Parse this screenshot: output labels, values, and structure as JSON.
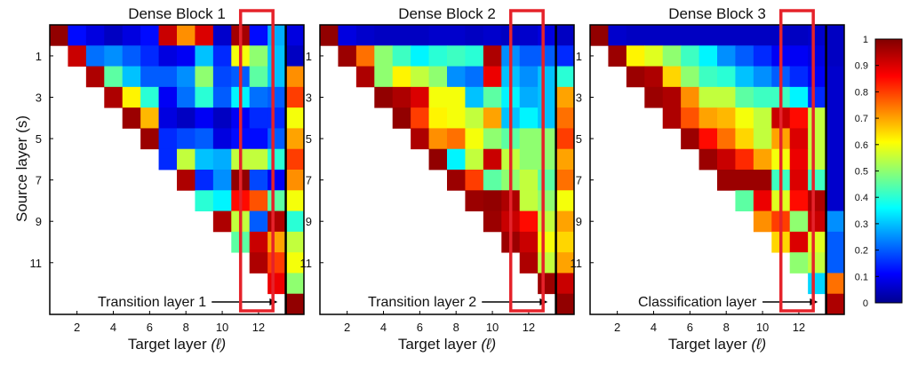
{
  "chart_data": {
    "type": "heatmap",
    "ylabel": "Source layer (s)",
    "y_tick_labels": [
      "1",
      "3",
      "5",
      "7",
      "9",
      "11"
    ],
    "x_tick_labels": [
      "2",
      "4",
      "6",
      "8",
      "10",
      "12"
    ],
    "xlabel_text": "Target layer",
    "xlabel_symbol": "(ℓ)",
    "colorbar": {
      "ticks": [
        "1",
        "0.9",
        "0.8",
        "0.7",
        "0.6",
        "0.5",
        "0.4",
        "0.3",
        "0.2",
        "0.1",
        "0"
      ],
      "range": [
        0,
        1
      ],
      "colormap": "jet"
    },
    "panels": [
      {
        "title": "Dense Block 1",
        "annotation": "Transition layer 1",
        "matrix": [
          [
            0.98,
            0.12,
            0.08,
            0.05,
            0.08,
            0.12,
            0.92,
            0.72,
            0.9,
            0.06,
            0.96,
            0.12,
            0.28,
            0.08
          ],
          [
            null,
            0.92,
            0.22,
            0.25,
            0.2,
            0.15,
            0.08,
            0.1,
            0.3,
            0.15,
            0.6,
            0.5,
            0.3,
            0.05
          ],
          [
            null,
            null,
            0.95,
            0.45,
            0.3,
            0.2,
            0.2,
            0.25,
            0.5,
            0.18,
            0.2,
            0.45,
            0.3,
            0.72
          ],
          [
            null,
            null,
            null,
            0.95,
            0.62,
            0.4,
            0.1,
            0.22,
            0.4,
            0.2,
            0.35,
            0.22,
            0.2,
            0.8
          ],
          [
            null,
            null,
            null,
            null,
            0.97,
            0.68,
            0.08,
            0.05,
            0.1,
            0.05,
            0.1,
            0.15,
            0.15,
            0.6
          ],
          [
            null,
            null,
            null,
            null,
            null,
            0.97,
            0.15,
            0.18,
            0.2,
            0.08,
            0.12,
            0.12,
            0.2,
            0.7
          ],
          [
            null,
            null,
            null,
            null,
            null,
            null,
            0.15,
            0.55,
            0.3,
            0.28,
            0.55,
            0.55,
            0.4,
            0.8
          ],
          [
            null,
            null,
            null,
            null,
            null,
            null,
            null,
            0.95,
            0.15,
            0.25,
            0.98,
            0.18,
            0.1,
            0.72
          ],
          [
            null,
            null,
            null,
            null,
            null,
            null,
            null,
            null,
            0.4,
            0.35,
            0.85,
            0.78,
            0.45,
            0.6
          ],
          [
            null,
            null,
            null,
            null,
            null,
            null,
            null,
            null,
            null,
            0.95,
            0.55,
            0.2,
            0.95,
            0.4
          ],
          [
            null,
            null,
            null,
            null,
            null,
            null,
            null,
            null,
            null,
            null,
            0.45,
            0.92,
            0.7,
            0.55
          ],
          [
            null,
            null,
            null,
            null,
            null,
            null,
            null,
            null,
            null,
            null,
            null,
            0.95,
            0.8,
            0.6
          ],
          [
            null,
            null,
            null,
            null,
            null,
            null,
            null,
            null,
            null,
            null,
            null,
            null,
            0.88,
            0.5
          ],
          [
            null,
            null,
            null,
            null,
            null,
            null,
            null,
            null,
            null,
            null,
            null,
            null,
            null,
            0.98
          ]
        ]
      },
      {
        "title": "Dense Block 2",
        "annotation": "Transition layer 2",
        "matrix": [
          [
            0.98,
            0.08,
            0.06,
            0.05,
            0.05,
            0.05,
            0.06,
            0.06,
            0.05,
            0.06,
            0.05,
            0.06,
            0.08,
            0.05
          ],
          [
            null,
            0.97,
            0.75,
            0.5,
            0.42,
            0.35,
            0.4,
            0.42,
            0.4,
            0.95,
            0.25,
            0.2,
            0.2,
            0.15
          ],
          [
            null,
            null,
            0.95,
            0.5,
            0.62,
            0.55,
            0.5,
            0.25,
            0.22,
            0.88,
            0.3,
            0.25,
            0.3,
            0.4
          ],
          [
            null,
            null,
            null,
            0.98,
            0.95,
            0.9,
            0.6,
            0.6,
            0.3,
            0.45,
            0.35,
            0.28,
            0.3,
            0.7
          ],
          [
            null,
            null,
            null,
            null,
            0.98,
            0.8,
            0.62,
            0.6,
            0.55,
            0.7,
            0.3,
            0.35,
            0.3,
            0.75
          ],
          [
            null,
            null,
            null,
            null,
            null,
            0.95,
            0.72,
            0.75,
            0.6,
            0.5,
            0.45,
            0.5,
            0.5,
            0.8
          ],
          [
            null,
            null,
            null,
            null,
            null,
            null,
            0.98,
            0.35,
            0.55,
            0.92,
            0.55,
            0.5,
            0.5,
            0.7
          ],
          [
            null,
            null,
            null,
            null,
            null,
            null,
            null,
            0.97,
            0.8,
            0.45,
            0.5,
            0.55,
            0.45,
            0.75
          ],
          [
            null,
            null,
            null,
            null,
            null,
            null,
            null,
            null,
            0.97,
            0.98,
            0.95,
            0.55,
            0.5,
            0.6
          ],
          [
            null,
            null,
            null,
            null,
            null,
            null,
            null,
            null,
            null,
            0.97,
            0.92,
            0.85,
            0.55,
            0.7
          ],
          [
            null,
            null,
            null,
            null,
            null,
            null,
            null,
            null,
            null,
            null,
            0.97,
            0.92,
            0.6,
            0.65
          ],
          [
            null,
            null,
            null,
            null,
            null,
            null,
            null,
            null,
            null,
            null,
            null,
            0.95,
            0.55,
            0.7
          ],
          [
            null,
            null,
            null,
            null,
            null,
            null,
            null,
            null,
            null,
            null,
            null,
            null,
            0.97,
            0.92
          ],
          [
            null,
            null,
            null,
            null,
            null,
            null,
            null,
            null,
            null,
            null,
            null,
            null,
            null,
            0.98
          ]
        ]
      },
      {
        "title": "Dense Block 3",
        "annotation": "Classification layer",
        "matrix": [
          [
            0.98,
            0.06,
            0.05,
            0.05,
            0.05,
            0.05,
            0.05,
            0.05,
            0.05,
            0.05,
            0.05,
            0.05,
            0.06,
            0.05
          ],
          [
            null,
            0.97,
            0.62,
            0.58,
            0.5,
            0.42,
            0.35,
            0.25,
            0.2,
            0.15,
            0.1,
            0.1,
            0.08,
            0.05
          ],
          [
            null,
            null,
            0.97,
            0.95,
            0.65,
            0.5,
            0.42,
            0.4,
            0.3,
            0.25,
            0.2,
            0.15,
            0.1,
            0.06
          ],
          [
            null,
            null,
            null,
            0.97,
            0.95,
            0.72,
            0.55,
            0.55,
            0.45,
            0.42,
            0.42,
            0.35,
            0.15,
            0.06
          ],
          [
            null,
            null,
            null,
            null,
            0.95,
            0.78,
            0.7,
            0.68,
            0.6,
            0.55,
            0.92,
            0.85,
            0.55,
            0.06
          ],
          [
            null,
            null,
            null,
            null,
            null,
            0.97,
            0.85,
            0.75,
            0.65,
            0.55,
            0.7,
            0.9,
            0.55,
            0.06
          ],
          [
            null,
            null,
            null,
            null,
            null,
            null,
            0.97,
            0.92,
            0.82,
            0.7,
            0.6,
            0.88,
            0.55,
            0.06
          ],
          [
            null,
            null,
            null,
            null,
            null,
            null,
            null,
            0.97,
            0.97,
            0.97,
            0.42,
            0.9,
            0.42,
            0.06
          ],
          [
            null,
            null,
            null,
            null,
            null,
            null,
            null,
            null,
            0.45,
            0.88,
            0.58,
            0.85,
            0.95,
            0.06
          ],
          [
            null,
            null,
            null,
            null,
            null,
            null,
            null,
            null,
            null,
            0.72,
            0.8,
            0.5,
            0.92,
            0.25
          ],
          [
            null,
            null,
            null,
            null,
            null,
            null,
            null,
            null,
            null,
            null,
            0.65,
            0.9,
            0.58,
            0.2
          ],
          [
            null,
            null,
            null,
            null,
            null,
            null,
            null,
            null,
            null,
            null,
            null,
            0.5,
            0.55,
            0.2
          ],
          [
            null,
            null,
            null,
            null,
            null,
            null,
            null,
            null,
            null,
            null,
            null,
            null,
            0.32,
            0.75
          ],
          [
            null,
            null,
            null,
            null,
            null,
            null,
            null,
            null,
            null,
            null,
            null,
            null,
            null,
            0.95
          ]
        ]
      }
    ]
  },
  "colors": {
    "highlight_box": "#e5222a",
    "background": "#ffffff",
    "axis": "#000000"
  }
}
